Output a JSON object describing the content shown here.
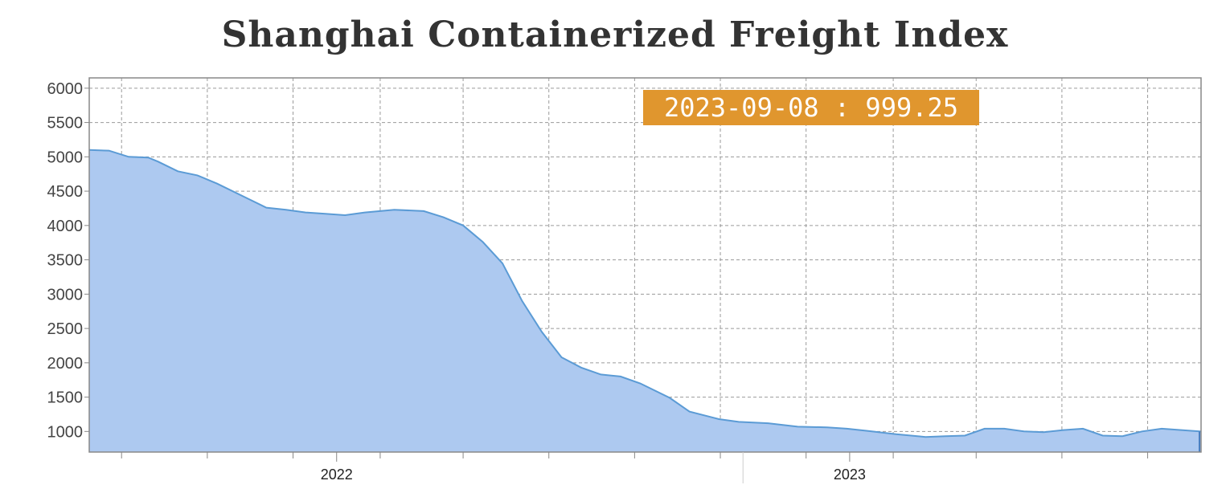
{
  "chart_data": {
    "type": "area",
    "title": "Shanghai Containerized Freight Index",
    "xlabel": "",
    "ylabel": "",
    "ylim": [
      700,
      6150
    ],
    "x_range": [
      "2021-07-09",
      "2023-09-08"
    ],
    "y_ticks": [
      "1000",
      "1500",
      "2000",
      "2500",
      "3000",
      "3500",
      "4000",
      "4500",
      "5000",
      "5500",
      "6000"
    ],
    "x_tick_labels": [
      {
        "date": "2022-01-01",
        "label": "2022"
      },
      {
        "date": "2023-01-01",
        "label": "2023"
      }
    ],
    "grid": true,
    "area_color": "#adc9f0",
    "line_color": "#5b9bd5",
    "tooltip_color": "#e0962e",
    "tooltip": "2023-09-08 : 999.25",
    "series": [
      {
        "x": [
          "2021-07-09",
          "2021-07-23",
          "2021-08-06",
          "2021-08-20",
          "2021-08-27",
          "2021-09-10",
          "2021-09-24",
          "2021-10-08",
          "2021-10-29",
          "2021-11-12",
          "2021-11-26",
          "2021-12-10",
          "2021-12-24",
          "2022-01-07",
          "2022-01-21",
          "2022-02-11",
          "2022-03-04",
          "2022-03-18",
          "2022-04-01",
          "2022-04-15",
          "2022-04-29",
          "2022-05-13",
          "2022-05-27",
          "2022-06-10",
          "2022-06-24",
          "2022-07-08",
          "2022-07-22",
          "2022-08-05",
          "2022-08-26",
          "2022-09-09",
          "2022-09-30",
          "2022-10-14",
          "2022-11-04",
          "2022-11-25",
          "2022-12-16",
          "2022-12-30",
          "2023-01-13",
          "2023-02-03",
          "2023-02-24",
          "2023-03-10",
          "2023-03-24",
          "2023-04-07",
          "2023-04-21",
          "2023-05-05",
          "2023-05-19",
          "2023-06-02",
          "2023-06-16",
          "2023-06-30",
          "2023-07-14",
          "2023-07-28",
          "2023-08-11",
          "2023-08-25",
          "2023-09-08"
        ],
        "values": [
          5100,
          5090,
          5000,
          4990,
          4930,
          4790,
          4730,
          4610,
          4400,
          4260,
          4230,
          4190,
          4170,
          4150,
          4190,
          4230,
          4210,
          4120,
          4000,
          3760,
          3450,
          2900,
          2450,
          2080,
          1930,
          1830,
          1800,
          1700,
          1490,
          1290,
          1180,
          1140,
          1120,
          1070,
          1060,
          1040,
          1010,
          960,
          920,
          930,
          940,
          1040,
          1040,
          1000,
          990,
          1020,
          1040,
          940,
          930,
          1000,
          1040,
          1020,
          999.25
        ]
      }
    ]
  }
}
